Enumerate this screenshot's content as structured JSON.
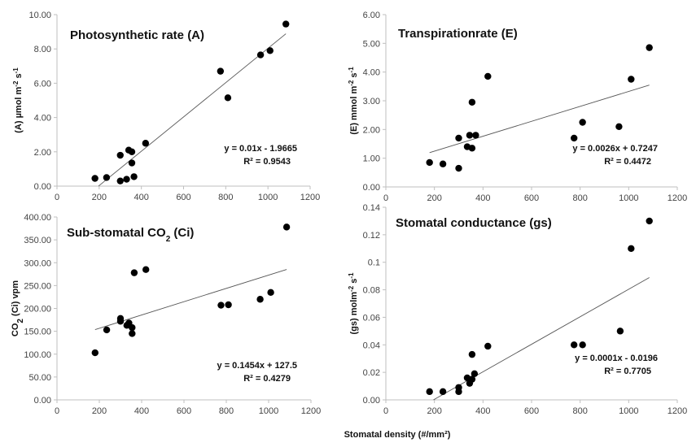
{
  "chart_data": [
    {
      "type": "scatter",
      "title": "Photosynthetic rate (A)",
      "ylabel_prefix": "(A) µmol m",
      "ylabel_parts": [
        {
          "t": "(A) µmol m",
          "sup": false
        },
        {
          "t": "-2",
          "sup": true
        },
        {
          "t": " s",
          "sup": false
        },
        {
          "t": "-1",
          "sup": true
        }
      ],
      "ylim": [
        0,
        10
      ],
      "yticks": [
        "0.00",
        "2.00",
        "4.00",
        "6.00",
        "8.00",
        "10.00"
      ],
      "ytick_values": [
        0,
        2,
        4,
        6,
        8,
        10
      ],
      "xlim": [
        0,
        1200
      ],
      "xticks": [
        "0",
        "200",
        "400",
        "600",
        "800",
        "1000",
        "1200"
      ],
      "xtick_values": [
        0,
        200,
        400,
        600,
        800,
        1000,
        1200
      ],
      "x": [
        180,
        235,
        300,
        300,
        330,
        340,
        355,
        355,
        365,
        420,
        775,
        810,
        965,
        1010,
        1085
      ],
      "y": [
        0.45,
        0.5,
        1.8,
        0.3,
        0.4,
        2.1,
        2.0,
        1.35,
        0.55,
        2.5,
        6.7,
        5.15,
        7.65,
        7.9,
        9.45
      ],
      "trendline": {
        "slope": 0.01,
        "intercept": -1.9665,
        "x_range": [
          197,
          1085
        ]
      },
      "equation": "y = 0.01x - 1.9665",
      "r2": "R² = 0.9543"
    },
    {
      "type": "scatter",
      "title": "Transpirationrate (E)",
      "ylabel_parts": [
        {
          "t": "(E) mmol m",
          "sup": false
        },
        {
          "t": "-2",
          "sup": true
        },
        {
          "t": " s",
          "sup": false
        },
        {
          "t": "-1",
          "sup": true
        }
      ],
      "ylim": [
        0,
        6
      ],
      "yticks": [
        "0.00",
        "1.00",
        "2.00",
        "3.00",
        "4.00",
        "5.00",
        "6.00"
      ],
      "ytick_values": [
        0,
        1,
        2,
        3,
        4,
        5,
        6
      ],
      "xlim": [
        0,
        1200
      ],
      "xticks": [
        "0",
        "200",
        "400",
        "600",
        "800",
        "1000",
        "1200"
      ],
      "xtick_values": [
        0,
        200,
        400,
        600,
        800,
        1000,
        1200
      ],
      "x": [
        180,
        235,
        300,
        300,
        335,
        345,
        355,
        355,
        370,
        420,
        775,
        810,
        960,
        1010,
        1085
      ],
      "y": [
        0.85,
        0.8,
        1.7,
        0.65,
        1.4,
        1.8,
        2.95,
        1.35,
        1.8,
        3.85,
        1.7,
        2.25,
        2.1,
        3.75,
        4.85
      ],
      "trendline": {
        "slope": 0.0026,
        "intercept": 0.7247,
        "x_range": [
          180,
          1085
        ]
      },
      "equation": "y = 0.0026x + 0.7247",
      "r2": "R² = 0.4472"
    },
    {
      "type": "scatter",
      "title_parts": [
        {
          "t": "Sub-stomatal CO",
          "sub": false
        },
        {
          "t": "2",
          "sub": true
        },
        {
          "t": "  (Ci)",
          "sub": false
        }
      ],
      "ylabel_parts": [
        {
          "t": "CO",
          "sub": false
        },
        {
          "t": "2",
          "sub": true
        },
        {
          "t": " (Ci) vpm",
          "sub": false
        }
      ],
      "ylim": [
        0,
        400
      ],
      "yticks": [
        "0.00",
        "50.00",
        "100.00",
        "150.00",
        "200.00",
        "250.00",
        "300.00",
        "350.00",
        "400.00"
      ],
      "ytick_values": [
        0,
        50,
        100,
        150,
        200,
        250,
        300,
        350,
        400
      ],
      "xlim": [
        0,
        1200
      ],
      "xticks": [
        "0",
        "200",
        "400",
        "600",
        "800",
        "1000",
        "1200"
      ],
      "xtick_values": [
        0,
        200,
        400,
        600,
        800,
        1000,
        1200
      ],
      "x": [
        180,
        235,
        300,
        300,
        330,
        340,
        355,
        355,
        365,
        420,
        775,
        810,
        960,
        1010,
        1085
      ],
      "y": [
        103,
        153,
        178,
        172,
        163,
        168,
        158,
        145,
        278,
        285,
        207,
        208,
        220,
        235,
        378
      ],
      "trendline": {
        "slope": 0.1454,
        "intercept": 127.5,
        "x_range": [
          180,
          1085
        ]
      },
      "equation": "y = 0.1454x + 127.5",
      "r2": "R² = 0.4279"
    },
    {
      "type": "scatter",
      "title": "Stomatal conductance (gs)",
      "ylabel_parts": [
        {
          "t": "(gs) molm",
          "sup": false
        },
        {
          "t": "-2",
          "sup": true
        },
        {
          "t": " s",
          "sup": false
        },
        {
          "t": "-1",
          "sup": true
        }
      ],
      "ylim": [
        0,
        0.14
      ],
      "yticks": [
        "0.00",
        "0.02",
        "0.04",
        "0.06",
        "0.08",
        "0.1",
        "0.12",
        "0.14"
      ],
      "ytick_values": [
        0,
        0.02,
        0.04,
        0.06,
        0.08,
        0.1,
        0.12,
        0.14
      ],
      "xlim": [
        0,
        1200
      ],
      "xticks": [
        "0",
        "200",
        "400",
        "600",
        "800",
        "1000",
        "1200"
      ],
      "xtick_values": [
        0,
        200,
        400,
        600,
        800,
        1000,
        1200
      ],
      "x": [
        180,
        235,
        300,
        300,
        335,
        345,
        355,
        355,
        365,
        420,
        775,
        810,
        965,
        1010,
        1085
      ],
      "y": [
        0.006,
        0.006,
        0.009,
        0.006,
        0.016,
        0.012,
        0.033,
        0.015,
        0.019,
        0.039,
        0.04,
        0.04,
        0.05,
        0.11,
        0.13
      ],
      "trendline": {
        "slope": 0.0001,
        "intercept": -0.0196,
        "x_range": [
          196,
          1085
        ]
      },
      "equation": "y = 0.0001x - 0.0196",
      "r2": "R² = 0.7705"
    }
  ],
  "shared_xlabel": "Stomatal density (#/mm²)"
}
